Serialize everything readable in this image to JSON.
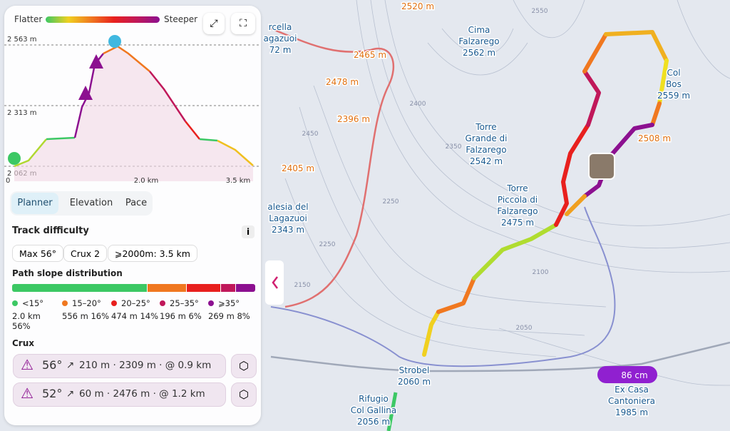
{
  "legend": {
    "left": "Flatter",
    "right": "Steeper"
  },
  "profile": {
    "y_labels": [
      "2 563 m",
      "2 313 m",
      "2 062 m"
    ],
    "x_labels": [
      "0",
      "2.0 km",
      "3.5 km"
    ]
  },
  "tabs": [
    "Planner",
    "Elevation",
    "Pace"
  ],
  "difficulty": {
    "title": "Track difficulty",
    "info": "i",
    "chips": [
      "Max 56°",
      "Crux 2",
      "⩾2000m: 3.5 km"
    ]
  },
  "distribution": {
    "title": "Path slope distribution",
    "items": [
      {
        "label": "<15°",
        "distance": "2.0 km",
        "share": 56,
        "share_label": "56%",
        "color": "#3cc864"
      },
      {
        "label": "15–20°",
        "distance": "556 m",
        "share": 16,
        "share_label": "16%",
        "color": "#f07820"
      },
      {
        "label": "20–25°",
        "distance": "474 m",
        "share": 14,
        "share_label": "14%",
        "color": "#e8201e"
      },
      {
        "label": "25–35°",
        "distance": "196 m",
        "share": 6,
        "share_label": "6%",
        "color": "#c0185a"
      },
      {
        "label": "⩾35°",
        "distance": "269 m",
        "share": 8,
        "share_label": "8%",
        "color": "#8c1090"
      }
    ]
  },
  "crux": {
    "title": "Crux",
    "rows": [
      {
        "angle": "56°",
        "detail": "210 m · 2309 m · @ 0.9 km"
      },
      {
        "angle": "52°",
        "detail": "60 m · 2476 m · @ 1.2 km"
      }
    ]
  },
  "map": {
    "peaks": {
      "cima": [
        "Cima",
        "Falzarego",
        "2562 m"
      ],
      "col": [
        "Col",
        "Bos",
        "2559 m"
      ],
      "grande": [
        "Torre",
        "Grande di",
        "Falzarego",
        "2542 m"
      ],
      "piccola": [
        "Torre",
        "Piccola di",
        "Falzarego",
        "2475 m"
      ],
      "lagazuoi": [
        "alesia del",
        "Lagazuoi",
        "2343 m"
      ],
      "forcella": [
        "rcella",
        "agazuoi",
        "72 m"
      ],
      "strobel": [
        "Strobel",
        "2060 m"
      ],
      "rifugio": [
        "Rifugio",
        "Col Gallina",
        "2056 m"
      ],
      "casa": [
        "Ex Casa",
        "Cantoniera",
        "1985 m"
      ]
    },
    "elevations": [
      "2520 m",
      "2465 m",
      "2478 m",
      "2396 m",
      "2405 m",
      "2508 m"
    ],
    "contours": [
      "2550",
      "2400",
      "2450",
      "2350",
      "2250",
      "2150",
      "2100",
      "2050",
      "2250"
    ],
    "snow": "86 cm"
  }
}
